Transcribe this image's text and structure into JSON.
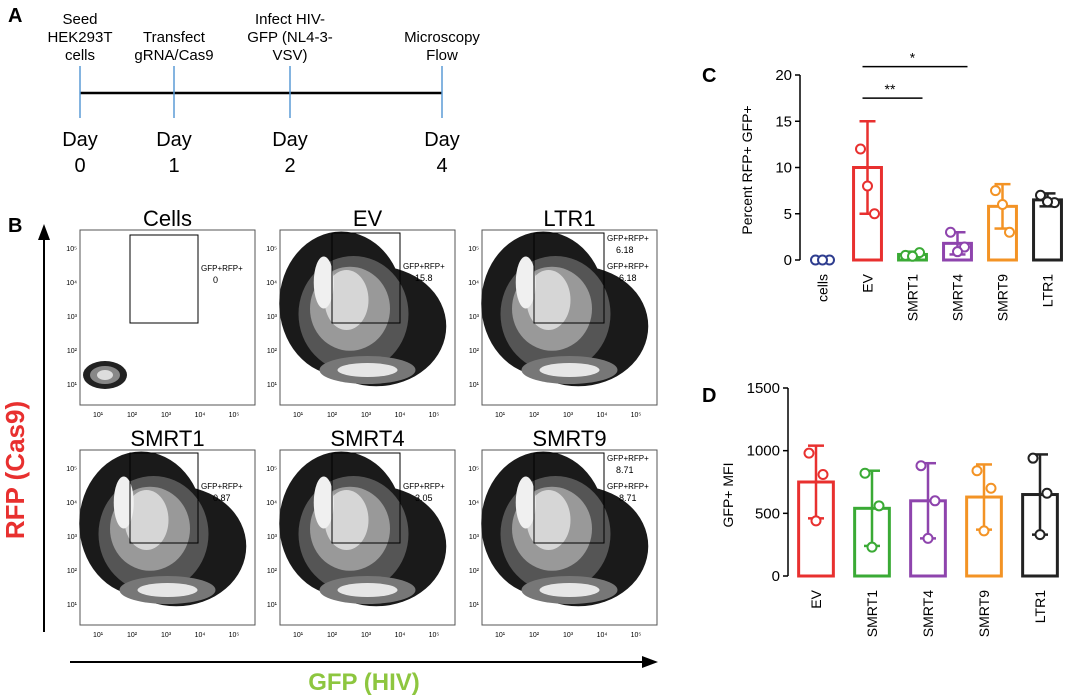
{
  "panels": {
    "a": "A",
    "b": "B",
    "c": "C",
    "d": "D"
  },
  "timeline": {
    "color": "#5b9bd5",
    "events": [
      {
        "top": [
          "Seed",
          "HEK293T",
          "cells"
        ],
        "day": "Day",
        "num": "0"
      },
      {
        "top": [
          "Transfect",
          "gRNA/Cas9"
        ],
        "day": "Day",
        "num": "1"
      },
      {
        "top": [
          "Infect HIV-",
          "GFP (NL4-3-",
          "VSV)"
        ],
        "day": "Day",
        "num": "2"
      },
      {
        "top": [
          "Microscopy",
          "Flow"
        ],
        "day": "Day",
        "num": "4"
      }
    ]
  },
  "flow": {
    "y_axis_label": "RFP (Cas9)",
    "x_axis_label": "GFP (HIV)",
    "y_color": "#e8302f",
    "x_color": "#8dc63f",
    "ticks": [
      "10¹",
      "10²",
      "10³",
      "10⁴",
      "10⁵"
    ],
    "plots": [
      {
        "title": "Cells",
        "gate": "GFP+RFP+",
        "value": "0"
      },
      {
        "title": "EV",
        "gate": "GFP+RFP+",
        "value": "15.8"
      },
      {
        "title": "LTR1",
        "gate": "GFP+RFP+",
        "value": "6.18",
        "gate2": "GFP+RFP+",
        "value2": "6.18"
      },
      {
        "title": "SMRT1",
        "gate": "GFP+RFP+",
        "value": "0.87"
      },
      {
        "title": "SMRT4",
        "gate": "GFP+RFP+",
        "value": "3.05"
      },
      {
        "title": "SMRT9",
        "gate": "GFP+RFP+",
        "value": "8.71",
        "gate2": "GFP+RFP+",
        "value2": "8.71"
      }
    ]
  },
  "chart_data": [
    {
      "type": "bar",
      "panel": "C",
      "ylabel": "Percent RFP+ GFP+",
      "ylim": [
        0,
        20
      ],
      "yticks": [
        "0",
        "5",
        "10",
        "15",
        "20"
      ],
      "categories": [
        "cells",
        "EV",
        "SMRT1",
        "SMRT4",
        "SMRT9",
        "LTR1"
      ],
      "colors": [
        "#2e3d8f",
        "#e8302f",
        "#3aaa35",
        "#8e44ad",
        "#f39325",
        "#222222"
      ],
      "values": [
        0,
        10,
        0.6,
        1.8,
        5.8,
        6.5
      ],
      "errors": [
        0.1,
        5.0,
        0.3,
        1.2,
        2.4,
        0.7
      ],
      "points": [
        [
          0,
          0,
          0
        ],
        [
          12,
          5,
          8
        ],
        [
          0.5,
          0.8,
          0.4
        ],
        [
          3,
          1.4,
          0.9
        ],
        [
          7.5,
          3,
          6
        ],
        [
          7,
          6.2,
          6.3
        ]
      ],
      "significance": [
        {
          "from": "EV",
          "to": "SMRT1",
          "label": "**"
        },
        {
          "from": "EV",
          "to": "SMRT4",
          "label": "*"
        }
      ]
    },
    {
      "type": "bar",
      "panel": "D",
      "ylabel": "GFP+ MFI",
      "ylim": [
        0,
        1500
      ],
      "yticks": [
        "0",
        "500",
        "1000",
        "1500"
      ],
      "categories": [
        "EV",
        "SMRT1",
        "SMRT4",
        "SMRT9",
        "LTR1"
      ],
      "colors": [
        "#e8302f",
        "#3aaa35",
        "#8e44ad",
        "#f39325",
        "#222222"
      ],
      "values": [
        750,
        540,
        600,
        630,
        650
      ],
      "errors": [
        290,
        300,
        300,
        260,
        320
      ],
      "points": [
        [
          980,
          810,
          440
        ],
        [
          820,
          560,
          230
        ],
        [
          880,
          600,
          300
        ],
        [
          840,
          700,
          360
        ],
        [
          940,
          660,
          330
        ]
      ]
    }
  ]
}
